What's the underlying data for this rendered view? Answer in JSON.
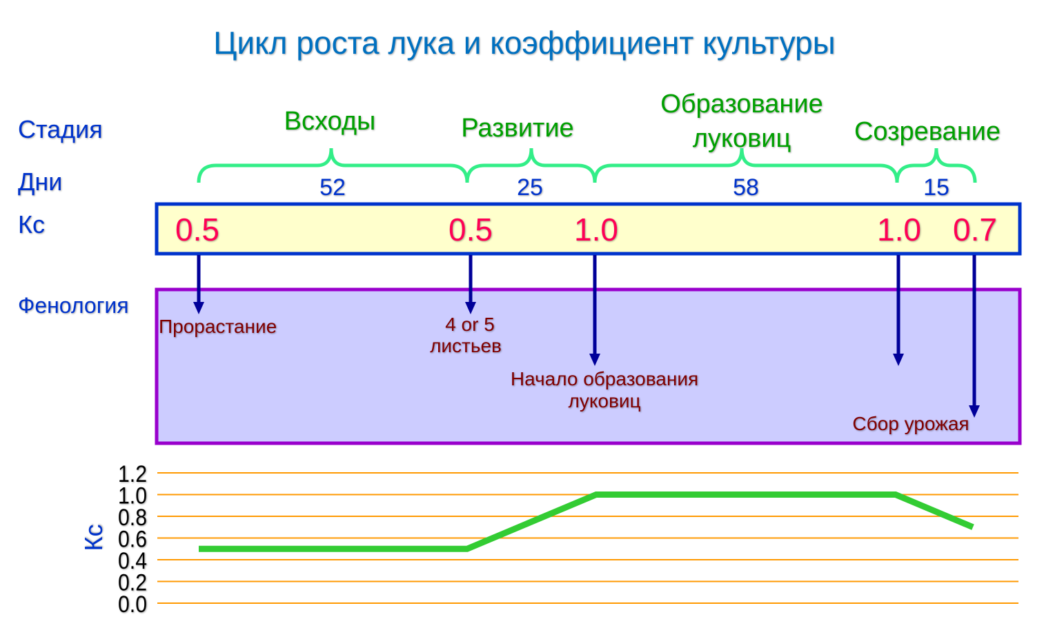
{
  "title": "Цикл роста лука и коэффициент культуры",
  "row_labels": {
    "stage": "Стадия",
    "days": "Дни",
    "kc": "Кс",
    "phenology": "Фенология"
  },
  "stages": [
    {
      "name": "Всходы",
      "days": "52"
    },
    {
      "name": "Развитие",
      "days": "25"
    },
    {
      "name_line1": "Образование",
      "name_line2": "луковиц",
      "days": "58"
    },
    {
      "name": "Созревание",
      "days": "15"
    }
  ],
  "kc_values": [
    "0.5",
    "0.5",
    "1.0",
    "1.0",
    "0.7"
  ],
  "phenology": {
    "germination": "Прорастание",
    "leaves_line1": "4 or 5",
    "leaves_line2": "листьев",
    "bulb_line1": "Начало образования",
    "bulb_line2": "луковиц",
    "harvest": "Сбор урожая"
  },
  "colors": {
    "title": "#0070c0",
    "labels": "#0033cc",
    "stage_text": "#00a000",
    "brace": "#33ee88",
    "kc_text": "#ff0055",
    "kc_box_fill": "#ffffcc",
    "kc_box_border": "#0033cc",
    "phen_box_fill": "#ccccff",
    "phen_box_border": "#9900cc",
    "phen_text": "#800000",
    "arrow": "#000099",
    "gridline": "#ff9900",
    "kc_line": "#33cc33"
  },
  "chart_data": {
    "type": "line",
    "ylabel": "Кс",
    "ylim": [
      0,
      1.2
    ],
    "yticks": [
      "0.0",
      "0.2",
      "0.4",
      "0.6",
      "0.8",
      "1.0",
      "1.2"
    ],
    "grid": true,
    "x_days": [
      0,
      52,
      77,
      135,
      150
    ],
    "values": [
      0.5,
      0.5,
      1.0,
      1.0,
      0.7
    ]
  }
}
